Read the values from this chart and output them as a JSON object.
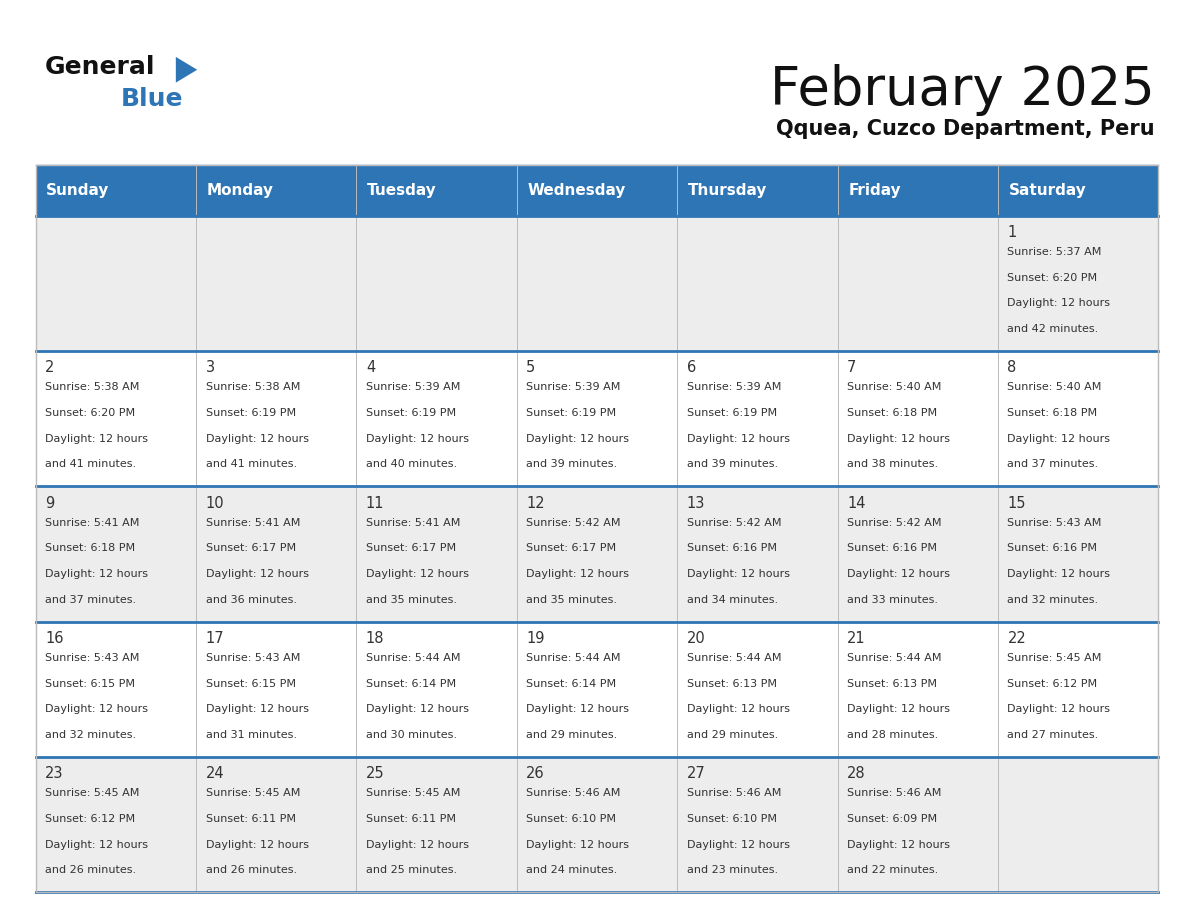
{
  "title": "February 2025",
  "subtitle": "Qquea, Cuzco Department, Peru",
  "header_bg": "#2E75B6",
  "header_text": "#FFFFFF",
  "cell_bg_light": "#EDEDED",
  "cell_bg_white": "#FFFFFF",
  "cell_border_color": "#2E75B6",
  "grid_color": "#BBBBBB",
  "day_headers": [
    "Sunday",
    "Monday",
    "Tuesday",
    "Wednesday",
    "Thursday",
    "Friday",
    "Saturday"
  ],
  "title_color": "#111111",
  "subtitle_color": "#111111",
  "num_color": "#333333",
  "text_color": "#333333",
  "logo_general_color": "#111111",
  "logo_blue_color": "#2E75B6",
  "logo_triangle_color": "#2E75B6",
  "days": [
    {
      "day": 1,
      "col": 6,
      "row": 0,
      "sunrise": "5:37 AM",
      "sunset": "6:20 PM",
      "and_text": "and 42 minutes."
    },
    {
      "day": 2,
      "col": 0,
      "row": 1,
      "sunrise": "5:38 AM",
      "sunset": "6:20 PM",
      "and_text": "and 41 minutes."
    },
    {
      "day": 3,
      "col": 1,
      "row": 1,
      "sunrise": "5:38 AM",
      "sunset": "6:19 PM",
      "and_text": "and 41 minutes."
    },
    {
      "day": 4,
      "col": 2,
      "row": 1,
      "sunrise": "5:39 AM",
      "sunset": "6:19 PM",
      "and_text": "and 40 minutes."
    },
    {
      "day": 5,
      "col": 3,
      "row": 1,
      "sunrise": "5:39 AM",
      "sunset": "6:19 PM",
      "and_text": "and 39 minutes."
    },
    {
      "day": 6,
      "col": 4,
      "row": 1,
      "sunrise": "5:39 AM",
      "sunset": "6:19 PM",
      "and_text": "and 39 minutes."
    },
    {
      "day": 7,
      "col": 5,
      "row": 1,
      "sunrise": "5:40 AM",
      "sunset": "6:18 PM",
      "and_text": "and 38 minutes."
    },
    {
      "day": 8,
      "col": 6,
      "row": 1,
      "sunrise": "5:40 AM",
      "sunset": "6:18 PM",
      "and_text": "and 37 minutes."
    },
    {
      "day": 9,
      "col": 0,
      "row": 2,
      "sunrise": "5:41 AM",
      "sunset": "6:18 PM",
      "and_text": "and 37 minutes."
    },
    {
      "day": 10,
      "col": 1,
      "row": 2,
      "sunrise": "5:41 AM",
      "sunset": "6:17 PM",
      "and_text": "and 36 minutes."
    },
    {
      "day": 11,
      "col": 2,
      "row": 2,
      "sunrise": "5:41 AM",
      "sunset": "6:17 PM",
      "and_text": "and 35 minutes."
    },
    {
      "day": 12,
      "col": 3,
      "row": 2,
      "sunrise": "5:42 AM",
      "sunset": "6:17 PM",
      "and_text": "and 35 minutes."
    },
    {
      "day": 13,
      "col": 4,
      "row": 2,
      "sunrise": "5:42 AM",
      "sunset": "6:16 PM",
      "and_text": "and 34 minutes."
    },
    {
      "day": 14,
      "col": 5,
      "row": 2,
      "sunrise": "5:42 AM",
      "sunset": "6:16 PM",
      "and_text": "and 33 minutes."
    },
    {
      "day": 15,
      "col": 6,
      "row": 2,
      "sunrise": "5:43 AM",
      "sunset": "6:16 PM",
      "and_text": "and 32 minutes."
    },
    {
      "day": 16,
      "col": 0,
      "row": 3,
      "sunrise": "5:43 AM",
      "sunset": "6:15 PM",
      "and_text": "and 32 minutes."
    },
    {
      "day": 17,
      "col": 1,
      "row": 3,
      "sunrise": "5:43 AM",
      "sunset": "6:15 PM",
      "and_text": "and 31 minutes."
    },
    {
      "day": 18,
      "col": 2,
      "row": 3,
      "sunrise": "5:44 AM",
      "sunset": "6:14 PM",
      "and_text": "and 30 minutes."
    },
    {
      "day": 19,
      "col": 3,
      "row": 3,
      "sunrise": "5:44 AM",
      "sunset": "6:14 PM",
      "and_text": "and 29 minutes."
    },
    {
      "day": 20,
      "col": 4,
      "row": 3,
      "sunrise": "5:44 AM",
      "sunset": "6:13 PM",
      "and_text": "and 29 minutes."
    },
    {
      "day": 21,
      "col": 5,
      "row": 3,
      "sunrise": "5:44 AM",
      "sunset": "6:13 PM",
      "and_text": "and 28 minutes."
    },
    {
      "day": 22,
      "col": 6,
      "row": 3,
      "sunrise": "5:45 AM",
      "sunset": "6:12 PM",
      "and_text": "and 27 minutes."
    },
    {
      "day": 23,
      "col": 0,
      "row": 4,
      "sunrise": "5:45 AM",
      "sunset": "6:12 PM",
      "and_text": "and 26 minutes."
    },
    {
      "day": 24,
      "col": 1,
      "row": 4,
      "sunrise": "5:45 AM",
      "sunset": "6:11 PM",
      "and_text": "and 26 minutes."
    },
    {
      "day": 25,
      "col": 2,
      "row": 4,
      "sunrise": "5:45 AM",
      "sunset": "6:11 PM",
      "and_text": "and 25 minutes."
    },
    {
      "day": 26,
      "col": 3,
      "row": 4,
      "sunrise": "5:46 AM",
      "sunset": "6:10 PM",
      "and_text": "and 24 minutes."
    },
    {
      "day": 27,
      "col": 4,
      "row": 4,
      "sunrise": "5:46 AM",
      "sunset": "6:10 PM",
      "and_text": "and 23 minutes."
    },
    {
      "day": 28,
      "col": 5,
      "row": 4,
      "sunrise": "5:46 AM",
      "sunset": "6:09 PM",
      "and_text": "and 22 minutes."
    }
  ],
  "row_bg": [
    "#EDEDED",
    "#FFFFFF",
    "#EDEDED",
    "#FFFFFF",
    "#EDEDED"
  ]
}
